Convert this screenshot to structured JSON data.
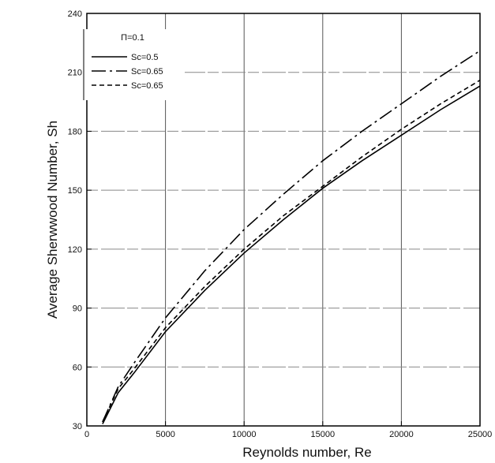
{
  "chart_data": {
    "type": "line",
    "xlabel": "Reynolds number,  Re",
    "ylabel": "Average Sherwwood Number,  Sh",
    "xlim": [
      0,
      25000
    ],
    "ylim": [
      30,
      240
    ],
    "xticks": [
      0,
      5000,
      10000,
      15000,
      20000,
      25000
    ],
    "yticks": [
      30,
      60,
      90,
      120,
      150,
      180,
      210,
      240
    ],
    "xtick_labels": [
      "0",
      "5000",
      "10000",
      "15000",
      "20000",
      "25000"
    ],
    "ytick_labels": [
      "30",
      "60",
      "90",
      "120",
      "150",
      "180",
      "210",
      "240"
    ],
    "grid": true,
    "legend": {
      "placement": "top-left",
      "header": "Π=0.1"
    },
    "series": [
      {
        "name": "Sc=0.5",
        "style": "solid",
        "color": "#000000",
        "x": [
          1000,
          2000,
          3000,
          5000,
          7500,
          10000,
          12500,
          15000,
          17500,
          20000,
          22500,
          25000
        ],
        "y": [
          31,
          47,
          57,
          78,
          99,
          118,
          135,
          151,
          165,
          178,
          191,
          203
        ]
      },
      {
        "name": "Sc=0.65",
        "style": "dash-dot",
        "color": "#000000",
        "x": [
          1000,
          2000,
          3000,
          5000,
          7500,
          10000,
          12500,
          15000,
          17500,
          20000,
          22500,
          25000
        ],
        "y": [
          32,
          50,
          62,
          85,
          109,
          130,
          148,
          165,
          180,
          194,
          208,
          221
        ]
      },
      {
        "name": "Sc=0.65",
        "style": "dashed",
        "color": "#000000",
        "x": [
          1000,
          2000,
          3000,
          5000,
          7500,
          10000,
          12500,
          15000,
          17500,
          20000,
          22500,
          25000
        ],
        "y": [
          32,
          49,
          59,
          80,
          101,
          120,
          137,
          152,
          167,
          181,
          194,
          206
        ]
      }
    ]
  }
}
